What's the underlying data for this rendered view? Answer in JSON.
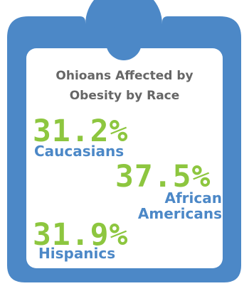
{
  "title_lines": [
    "Ohioans Affected by",
    "Obesity by Race"
  ],
  "colors": {
    "frame": "#4C88C7",
    "percent": "#8DC63F",
    "label": "#4C88C7",
    "title": "#666666",
    "panel": "#ffffff"
  },
  "chart_data": {
    "type": "table",
    "title": "Ohioans Affected by Obesity by Race",
    "categories": [
      "Caucasians",
      "African Americans",
      "Hispanics"
    ],
    "values": [
      31.2,
      37.5,
      31.9
    ],
    "unit": "%",
    "items": [
      {
        "value_text": "31.2%",
        "label_lines": [
          "Caucasians"
        ]
      },
      {
        "value_text": "37.5%",
        "label_lines": [
          "African",
          "Americans"
        ]
      },
      {
        "value_text": "31.9%",
        "label_lines": [
          "Hispanics"
        ]
      }
    ]
  }
}
